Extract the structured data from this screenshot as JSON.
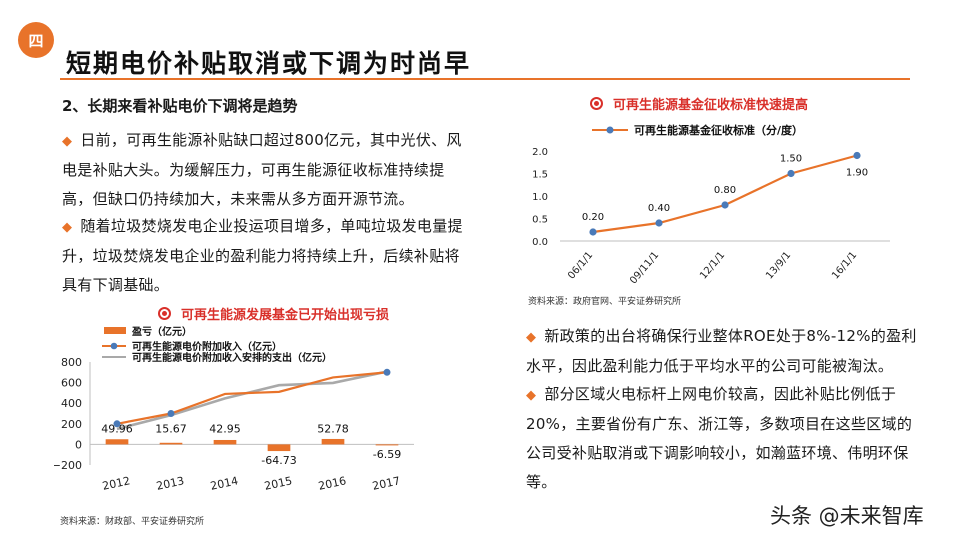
{
  "header": {
    "badge": "四",
    "title": "短期电价补贴取消或下调为时尚早"
  },
  "left": {
    "heading": "2、长期来看补贴电价下调将是趋势",
    "bullets": [
      "日前，可再生能源补贴缺口超过800亿元，其中光伏、风电是补贴大头。为缓解压力，可再生能源征收标准持续提高，但缺口仍持续加大，未来需从多方面开源节流。",
      "随着垃圾焚烧发电企业投运项目增多，单吨垃圾发电量提升，垃圾焚烧发电企业的盈利能力将持续上升，后续补贴将具有下调基础。"
    ]
  },
  "right": {
    "bullets": [
      "新政策的出台将确保行业整体ROE处于8%-12%的盈利水平，因此盈利能力低于平均水平的公司可能被淘汰。",
      "部分区域火电标杆上网电价较高，因此补贴比例低于20%，主要省份有广东、浙江等，多数项目在这些区域的公司受补贴取消或下调影响较小，如瀚蓝环境、伟明环保等。"
    ]
  },
  "chart_data": [
    {
      "type": "line",
      "title": "可再生能源基金征收标准快速提高",
      "categories": [
        "06/1/1",
        "09/11/1",
        "12/1/1",
        "13/9/1",
        "16/1/1"
      ],
      "series": [
        {
          "name": "可再生能源基金征收标准（分/度）",
          "values": [
            0.2,
            0.4,
            0.8,
            1.5,
            1.9
          ],
          "labels": [
            "0.20",
            "0.40",
            "0.80",
            "1.50",
            "1.90"
          ]
        }
      ],
      "yticks": [
        "0.0",
        "0.5",
        "1.0",
        "1.5",
        "2.0"
      ],
      "ylim": [
        0,
        2.0
      ],
      "source": "资料来源：政府官网、平安证券研究所",
      "colors": {
        "line": "#e8732a",
        "marker": "#4a7ab8"
      }
    },
    {
      "type": "bar+line",
      "title": "可再生能源发展基金已开始出现亏损",
      "categories": [
        "2012",
        "2013",
        "2014",
        "2015",
        "2016",
        "2017"
      ],
      "bar_series": {
        "name": "盈亏（亿元）",
        "values": [
          49.96,
          15.67,
          42.95,
          -64.73,
          52.78,
          -6.59
        ],
        "labels": [
          "49.96",
          "15.67",
          "42.95",
          "-64.73",
          "52.78",
          "-6.59"
        ]
      },
      "line_series": [
        {
          "name": "可再生能源电价附加收入（亿元）",
          "values": [
            200,
            300,
            490,
            510,
            650,
            700
          ]
        },
        {
          "name": "可再生能源电价附加收入安排的支出（亿元）",
          "values": [
            150,
            284,
            447,
            575,
            597,
            707
          ]
        }
      ],
      "yticks": [
        "−200",
        "0",
        "200",
        "400",
        "600",
        "800"
      ],
      "ylim": [
        -200,
        800
      ],
      "source": "资料来源：财政部、平安证券研究所",
      "colors": {
        "bar": "#e8732a",
        "line_income": "#e8732a",
        "line_spend": "#a9a9a9",
        "marker": "#4a7ab8"
      }
    }
  ],
  "watermark": "头条 @未来智库"
}
